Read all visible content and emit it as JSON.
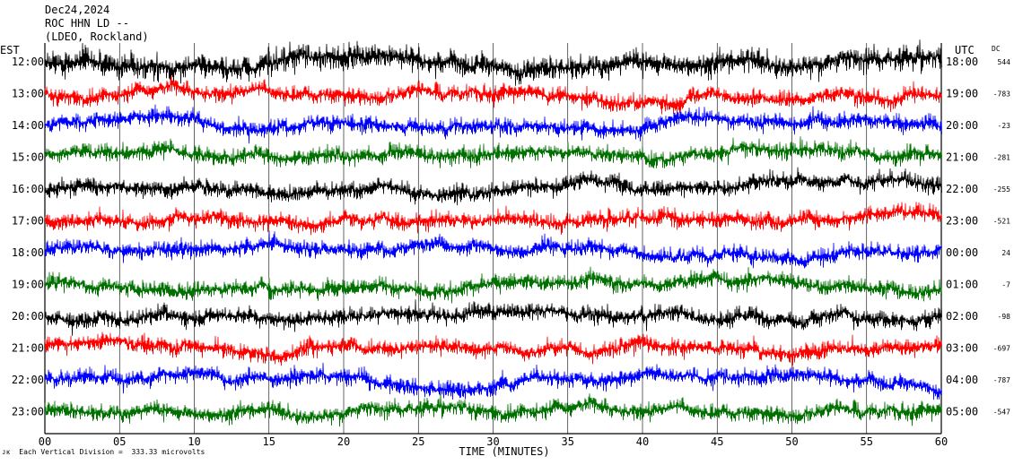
{
  "header": {
    "date": "Dec24,2024",
    "station": "ROC HHN LD --",
    "network": "(LDEO, Rockland)"
  },
  "axis": {
    "left_unit": "EST",
    "right_unit": "UTC",
    "dc_unit": "DC",
    "xlabel": "TIME (MINUTES)"
  },
  "footer": {
    "glyph": "ᴊᴋ",
    "division_note": "Each Vertical Division =  333.33 microvolts"
  },
  "colors": {
    "palette": [
      "#ff0000",
      "#0000ff",
      "#007000",
      "#000000"
    ],
    "grid": "#000000"
  },
  "chart_data": {
    "type": "line",
    "title": "",
    "xlabel": "TIME (MINUTES)",
    "ylabel": "",
    "xlim": [
      0,
      60
    ],
    "x_ticks": [
      "00",
      "05",
      "10",
      "15",
      "20",
      "25",
      "30",
      "35",
      "40",
      "45",
      "50",
      "55",
      "60"
    ],
    "est_ticks": [
      "12:00",
      "13:00",
      "14:00",
      "15:00",
      "16:00",
      "17:00",
      "18:00",
      "19:00",
      "20:00",
      "21:00",
      "22:00",
      "23:00"
    ],
    "utc_ticks": [
      "18:00",
      "19:00",
      "20:00",
      "21:00",
      "22:00",
      "23:00",
      "00:00",
      "01:00",
      "02:00",
      "03:00",
      "04:00",
      "05:00"
    ],
    "dc_values": [
      "544",
      "-783",
      "-23",
      "-281",
      "-255",
      "-521",
      "24",
      "-7",
      "-98",
      "-697",
      "-787",
      "-547"
    ],
    "series_colors": [
      "black",
      "red",
      "blue",
      "green",
      "black",
      "red",
      "blue",
      "green",
      "black",
      "red",
      "blue",
      "green"
    ],
    "grid": true
  }
}
